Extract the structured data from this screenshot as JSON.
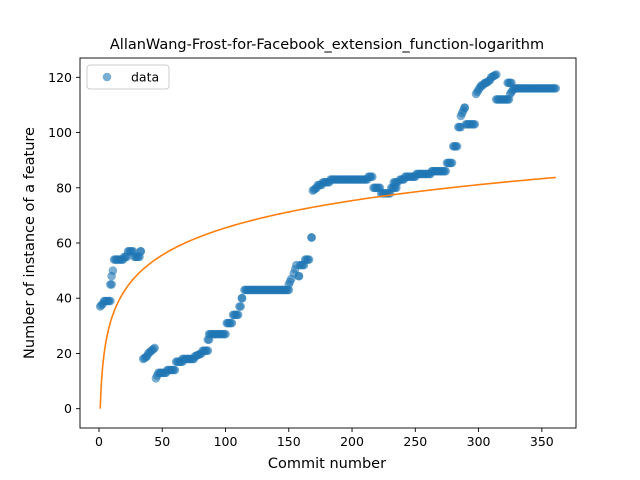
{
  "chart_data": {
    "type": "scatter",
    "title": "AllanWang-Frost-for-Facebook_extension_function-logarithm",
    "xlabel": "Commit number",
    "ylabel": "Number of instance of a feature",
    "xlim": [
      -15,
      377
    ],
    "ylim": [
      -7,
      127
    ],
    "xticks": [
      0,
      50,
      100,
      150,
      200,
      250,
      300,
      350
    ],
    "yticks": [
      0,
      20,
      40,
      60,
      80,
      100,
      120
    ],
    "grid": false,
    "legend": {
      "position": "top-left",
      "entries": [
        "data"
      ]
    },
    "colors": {
      "data": "#1f77b4",
      "fit": "#ff7f0e"
    },
    "series": [
      {
        "name": "data",
        "kind": "scatter",
        "segments": [
          [
            1,
            37,
            3,
            38
          ],
          [
            4,
            39,
            9,
            39
          ],
          [
            9,
            45,
            10,
            45
          ],
          [
            10,
            48,
            11,
            50
          ],
          [
            12,
            54,
            19,
            54
          ],
          [
            20,
            55,
            22,
            55
          ],
          [
            23,
            57,
            27,
            57
          ],
          [
            28,
            55,
            32,
            55
          ],
          [
            33,
            57,
            33,
            57
          ],
          [
            35,
            18,
            38,
            19
          ],
          [
            39,
            20,
            44,
            22
          ],
          [
            45,
            11,
            47,
            13
          ],
          [
            48,
            13,
            53,
            13
          ],
          [
            54,
            14,
            60,
            14
          ],
          [
            61,
            17,
            66,
            17
          ],
          [
            66,
            18,
            75,
            18
          ],
          [
            76,
            19,
            81,
            20
          ],
          [
            82,
            21,
            86,
            21
          ],
          [
            86,
            25,
            87,
            25
          ],
          [
            87,
            27,
            100,
            27
          ],
          [
            101,
            31,
            105,
            31
          ],
          [
            106,
            34,
            110,
            34
          ],
          [
            111,
            37,
            112,
            37
          ],
          [
            113,
            40,
            113,
            40
          ],
          [
            115,
            43,
            150,
            43
          ],
          [
            150,
            45,
            152,
            47
          ],
          [
            154,
            49,
            156,
            52
          ],
          [
            158,
            48,
            158,
            48
          ],
          [
            159,
            52,
            162,
            52
          ],
          [
            163,
            54,
            166,
            54
          ],
          [
            168,
            62,
            168,
            62
          ],
          [
            169,
            79,
            172,
            80
          ],
          [
            173,
            81,
            176,
            81
          ],
          [
            177,
            82,
            182,
            82
          ],
          [
            183,
            83,
            212,
            83
          ],
          [
            213,
            84,
            216,
            84
          ],
          [
            217,
            80,
            222,
            80
          ],
          [
            223,
            78,
            230,
            78
          ],
          [
            231,
            80,
            235,
            80
          ],
          [
            233,
            82,
            236,
            82
          ],
          [
            238,
            83,
            241,
            83
          ],
          [
            242,
            84,
            250,
            84
          ],
          [
            251,
            85,
            262,
            85
          ],
          [
            263,
            86,
            274,
            86
          ],
          [
            275,
            89,
            279,
            89
          ],
          [
            280,
            95,
            283,
            95
          ],
          [
            284,
            102,
            286,
            102
          ],
          [
            286,
            106,
            288,
            108
          ],
          [
            289,
            109,
            289,
            109
          ],
          [
            290,
            103,
            297,
            103
          ],
          [
            298,
            114,
            302,
            117
          ],
          [
            303,
            117,
            305,
            118
          ],
          [
            306,
            118,
            309,
            119
          ],
          [
            310,
            120,
            314,
            121
          ],
          [
            314,
            112,
            320,
            112
          ],
          [
            321,
            112,
            324,
            112
          ],
          [
            323,
            118,
            326,
            118
          ],
          [
            325,
            114,
            328,
            116
          ],
          [
            329,
            116,
            361,
            116
          ]
        ]
      },
      {
        "name": "",
        "kind": "line",
        "function": "y = a*ln(x) + b",
        "a": 14.22,
        "b": 0.0,
        "x_range": [
          1,
          361
        ]
      }
    ]
  }
}
